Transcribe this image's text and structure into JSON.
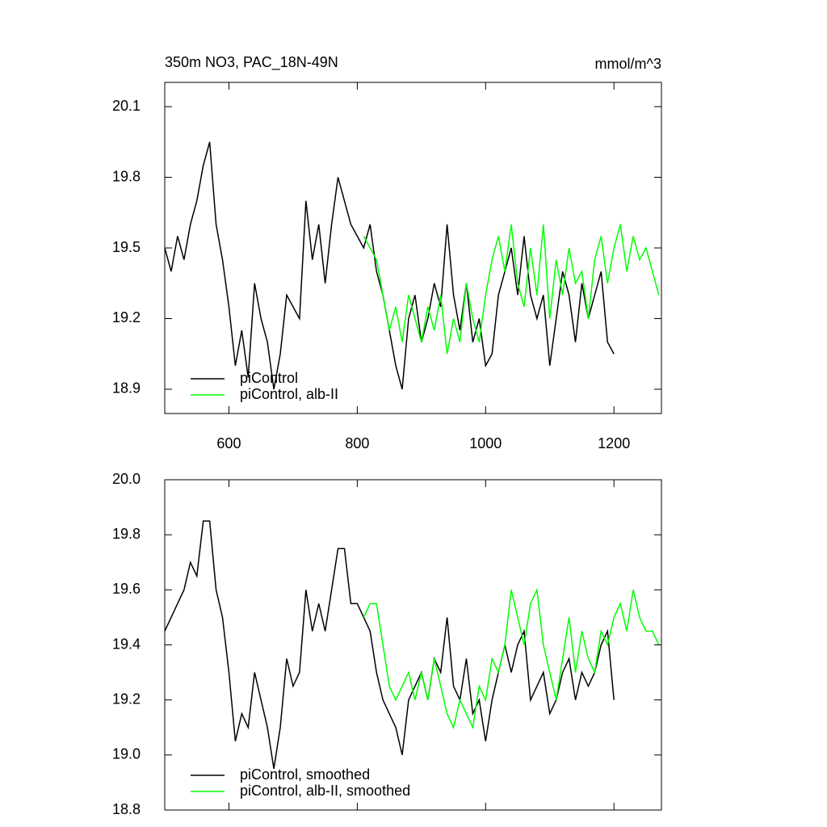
{
  "chart_data": [
    {
      "type": "line",
      "title": "350m NO3, PAC_18N-49N",
      "units": "mmol/m^3",
      "xlim": [
        500,
        1274
      ],
      "xticks": [
        600,
        800,
        1000,
        1200
      ],
      "xtick_labels": true,
      "ylim": [
        18.797,
        20.203
      ],
      "yticks": [
        18.9,
        19.2,
        19.5,
        19.8,
        20.1
      ],
      "legend": "lower left",
      "series": [
        {
          "name": "piControl",
          "color": "#000000",
          "x": [
            500,
            510,
            520,
            530,
            540,
            550,
            560,
            570,
            580,
            590,
            600,
            610,
            620,
            630,
            640,
            650,
            660,
            670,
            680,
            690,
            700,
            710,
            720,
            730,
            740,
            750,
            760,
            770,
            780,
            790,
            800,
            810,
            820,
            830,
            840,
            850,
            860,
            870,
            880,
            890,
            900,
            910,
            920,
            930,
            940,
            950,
            960,
            970,
            980,
            990,
            1000,
            1010,
            1020,
            1030,
            1040,
            1050,
            1060,
            1070,
            1080,
            1090,
            1100,
            1110,
            1120,
            1130,
            1140,
            1150,
            1160,
            1170,
            1180,
            1190,
            1200
          ],
          "values": [
            19.5,
            19.4,
            19.55,
            19.45,
            19.6,
            19.7,
            19.85,
            19.95,
            19.6,
            19.45,
            19.25,
            19.0,
            19.15,
            18.95,
            19.35,
            19.2,
            19.1,
            18.9,
            19.05,
            19.3,
            19.25,
            19.2,
            19.7,
            19.45,
            19.6,
            19.35,
            19.6,
            19.8,
            19.7,
            19.6,
            19.55,
            19.5,
            19.6,
            19.4,
            19.3,
            19.15,
            19.0,
            18.9,
            19.2,
            19.3,
            19.1,
            19.2,
            19.35,
            19.25,
            19.6,
            19.3,
            19.15,
            19.35,
            19.1,
            19.2,
            19.0,
            19.05,
            19.3,
            19.4,
            19.5,
            19.3,
            19.55,
            19.3,
            19.2,
            19.3,
            19.0,
            19.2,
            19.4,
            19.3,
            19.1,
            19.35,
            19.2,
            19.3,
            19.4,
            19.1,
            19.05
          ]
        },
        {
          "name": "piControl, alb-II",
          "color": "#00ff00",
          "x": [
            810,
            820,
            830,
            840,
            850,
            860,
            870,
            880,
            890,
            900,
            910,
            920,
            930,
            940,
            950,
            960,
            970,
            980,
            990,
            1000,
            1010,
            1020,
            1030,
            1040,
            1050,
            1060,
            1070,
            1080,
            1090,
            1100,
            1110,
            1120,
            1130,
            1140,
            1150,
            1160,
            1170,
            1180,
            1190,
            1200,
            1210,
            1220,
            1230,
            1240,
            1250,
            1260,
            1270
          ],
          "values": [
            19.55,
            19.5,
            19.45,
            19.3,
            19.15,
            19.25,
            19.1,
            19.3,
            19.2,
            19.1,
            19.25,
            19.15,
            19.3,
            19.05,
            19.2,
            19.1,
            19.35,
            19.2,
            19.1,
            19.3,
            19.45,
            19.55,
            19.4,
            19.6,
            19.35,
            19.25,
            19.5,
            19.3,
            19.6,
            19.2,
            19.45,
            19.3,
            19.5,
            19.35,
            19.4,
            19.2,
            19.45,
            19.55,
            19.35,
            19.5,
            19.6,
            19.4,
            19.55,
            19.45,
            19.5,
            19.4,
            19.3
          ]
        }
      ]
    },
    {
      "type": "line",
      "xlim": [
        500,
        1274
      ],
      "xticks": [
        600,
        800,
        1000,
        1200
      ],
      "xtick_labels": false,
      "ylim": [
        18.8,
        20.0
      ],
      "yticks": [
        18.8,
        {
          "value": 19.0,
          "label": "19.0"
        },
        19.2,
        19.4,
        19.6,
        19.8,
        {
          "value": 20.0,
          "label": "20.0"
        }
      ],
      "legend": "lower left",
      "series": [
        {
          "name": "piControl, smoothed",
          "color": "#000000",
          "x": [
            500,
            510,
            520,
            530,
            540,
            550,
            560,
            570,
            580,
            590,
            600,
            610,
            620,
            630,
            640,
            650,
            660,
            670,
            680,
            690,
            700,
            710,
            720,
            730,
            740,
            750,
            760,
            770,
            780,
            790,
            800,
            810,
            820,
            830,
            840,
            850,
            860,
            870,
            880,
            890,
            900,
            910,
            920,
            930,
            940,
            950,
            960,
            970,
            980,
            990,
            1000,
            1010,
            1020,
            1030,
            1040,
            1050,
            1060,
            1070,
            1080,
            1090,
            1100,
            1110,
            1120,
            1130,
            1140,
            1150,
            1160,
            1170,
            1180,
            1190,
            1200
          ],
          "values": [
            19.45,
            19.5,
            19.55,
            19.6,
            19.7,
            19.65,
            19.85,
            19.85,
            19.6,
            19.5,
            19.3,
            19.05,
            19.15,
            19.1,
            19.3,
            19.2,
            19.1,
            18.95,
            19.1,
            19.35,
            19.25,
            19.3,
            19.6,
            19.45,
            19.55,
            19.45,
            19.6,
            19.75,
            19.75,
            19.55,
            19.55,
            19.5,
            19.45,
            19.3,
            19.2,
            19.15,
            19.1,
            19.0,
            19.2,
            19.25,
            19.3,
            19.2,
            19.35,
            19.3,
            19.5,
            19.25,
            19.2,
            19.35,
            19.15,
            19.2,
            19.05,
            19.2,
            19.3,
            19.4,
            19.3,
            19.4,
            19.45,
            19.2,
            19.25,
            19.3,
            19.15,
            19.2,
            19.3,
            19.35,
            19.2,
            19.3,
            19.25,
            19.3,
            19.4,
            19.45,
            19.2
          ]
        },
        {
          "name": "piControl, alb-II, smoothed",
          "color": "#00ff00",
          "x": [
            810,
            820,
            830,
            840,
            850,
            860,
            870,
            880,
            890,
            900,
            910,
            920,
            930,
            940,
            950,
            960,
            970,
            980,
            990,
            1000,
            1010,
            1020,
            1030,
            1040,
            1050,
            1060,
            1070,
            1080,
            1090,
            1100,
            1110,
            1120,
            1130,
            1140,
            1150,
            1160,
            1170,
            1180,
            1190,
            1200,
            1210,
            1220,
            1230,
            1240,
            1250,
            1260,
            1270
          ],
          "values": [
            19.5,
            19.55,
            19.55,
            19.4,
            19.25,
            19.2,
            19.25,
            19.3,
            19.2,
            19.3,
            19.2,
            19.35,
            19.25,
            19.15,
            19.1,
            19.2,
            19.15,
            19.1,
            19.25,
            19.2,
            19.35,
            19.3,
            19.4,
            19.6,
            19.5,
            19.4,
            19.55,
            19.6,
            19.4,
            19.3,
            19.2,
            19.35,
            19.5,
            19.3,
            19.45,
            19.35,
            19.3,
            19.45,
            19.4,
            19.5,
            19.55,
            19.45,
            19.6,
            19.5,
            19.45,
            19.45,
            19.4
          ]
        }
      ]
    }
  ]
}
